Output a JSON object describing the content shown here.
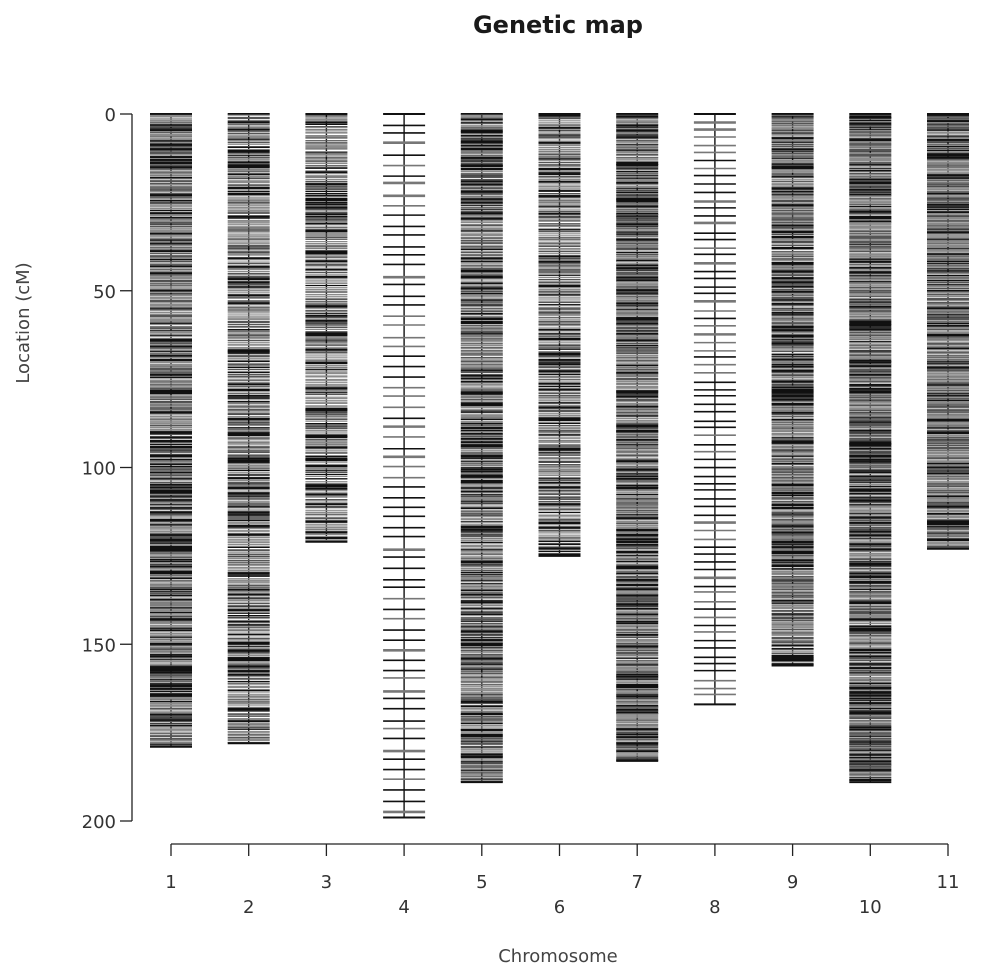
{
  "chart_data": {
    "type": "genetic-map",
    "title": "Genetic map",
    "xlabel": "Chromosome",
    "ylabel": "Location (cM)",
    "ylim": [
      0,
      205
    ],
    "y_reversed": true,
    "yticks": [
      0,
      50,
      100,
      150,
      200
    ],
    "chromosomes": [
      {
        "name": "1",
        "length": 179,
        "density": 2.6
      },
      {
        "name": "2",
        "length": 178,
        "density": 2.2
      },
      {
        "name": "3",
        "length": 121,
        "density": 2.0
      },
      {
        "name": "4",
        "length": 199,
        "density": 0.35
      },
      {
        "name": "5",
        "length": 189,
        "density": 2.5
      },
      {
        "name": "6",
        "length": 125,
        "density": 2.1
      },
      {
        "name": "7",
        "length": 183,
        "density": 2.7
      },
      {
        "name": "8",
        "length": 167,
        "density": 0.45
      },
      {
        "name": "9",
        "length": 156,
        "density": 2.6
      },
      {
        "name": "10",
        "length": 189,
        "density": 2.8
      },
      {
        "name": "11",
        "length": 123,
        "density": 2.8
      }
    ]
  }
}
